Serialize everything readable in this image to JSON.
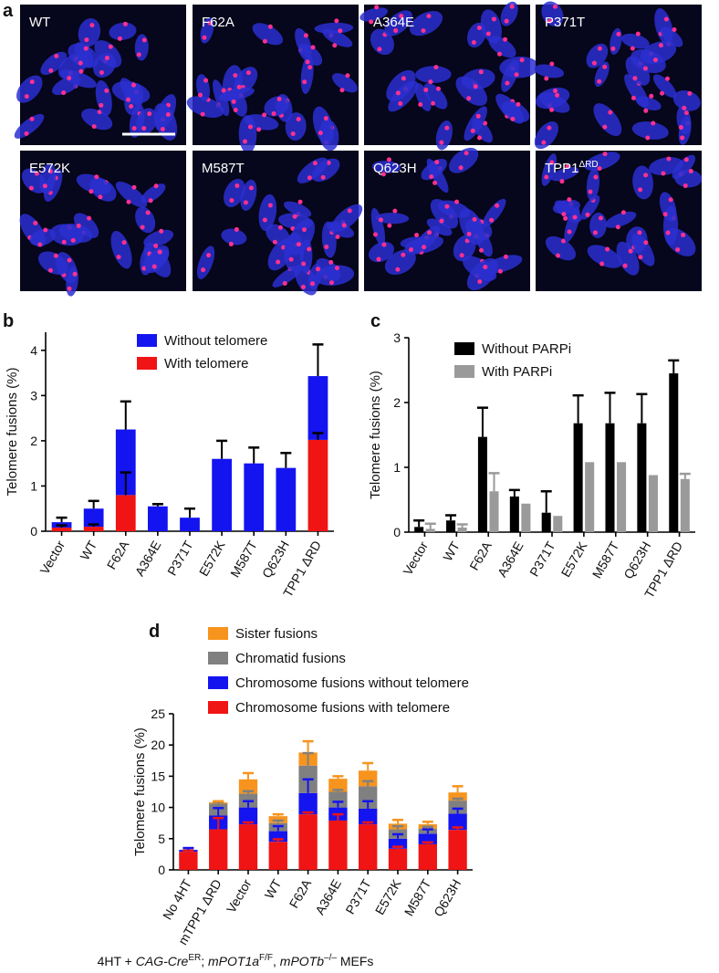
{
  "figure": {
    "panels": [
      "a",
      "b",
      "c",
      "d"
    ]
  },
  "images": [
    {
      "label": "WT"
    },
    {
      "label": "F62A"
    },
    {
      "label": "A364E"
    },
    {
      "label": "P371T"
    },
    {
      "label": "E572K"
    },
    {
      "label": "M587T"
    },
    {
      "label": "Q623H"
    },
    {
      "label": "TPP1",
      "superscript": "ΔRD"
    }
  ],
  "chart_data": [
    {
      "type": "stacked_bar",
      "y_label": "Telomere fusions (%)",
      "categories": [
        "Vector",
        "WT",
        "F62A",
        "A364E",
        "P371T",
        "E572K",
        "M587T",
        "Q623H",
        "TPP1 ΔRD"
      ],
      "series": [
        {
          "name": "Without telomere",
          "color": "#1414f0",
          "values": [
            0.12,
            0.4,
            1.45,
            0.55,
            0.3,
            1.6,
            1.5,
            1.4,
            1.41
          ],
          "errors": [
            0.1,
            0.17,
            0.62,
            0.05,
            0.2,
            0.4,
            0.35,
            0.33,
            0.7
          ]
        },
        {
          "name": "With telomere",
          "color": "#f01414",
          "values": [
            0.08,
            0.1,
            0.8,
            0,
            0,
            0,
            0,
            0,
            2.02
          ],
          "errors": [
            0.05,
            0.05,
            0.5,
            null,
            null,
            null,
            null,
            null,
            0.15
          ]
        }
      ],
      "error_color": "#000000",
      "ylim": [
        0,
        4.4
      ],
      "yticks": [
        0,
        1,
        2,
        3,
        4
      ]
    },
    {
      "type": "grouped_bar",
      "y_label": "Telomere fusions (%)",
      "categories": [
        "Vector",
        "WT",
        "F62A",
        "A364E",
        "P371T",
        "E572K",
        "M587T",
        "Q623H",
        "TPP1 ΔRD"
      ],
      "series": [
        {
          "name": "Without PARPi",
          "color": "#000000",
          "values": [
            0.08,
            0.18,
            1.47,
            0.55,
            0.3,
            1.68,
            1.68,
            1.68,
            2.45
          ],
          "errors": [
            0.1,
            0.08,
            0.45,
            0.1,
            0.33,
            0.43,
            0.47,
            0.45,
            0.2
          ]
        },
        {
          "name": "With PARPi",
          "color": "#9a9a9a",
          "values": [
            0.05,
            0.07,
            0.63,
            0.44,
            0.25,
            1.08,
            1.08,
            0.88,
            0.82
          ],
          "errors": [
            0.08,
            0.05,
            0.28,
            null,
            null,
            null,
            null,
            null,
            0.08
          ]
        }
      ],
      "ylim": [
        0,
        3
      ],
      "yticks": [
        0,
        1,
        2,
        3
      ]
    },
    {
      "type": "stacked_bar",
      "y_label": "Telomere fusions (%)",
      "categories": [
        "No 4HT",
        "mTPP1 ΔRD",
        "Vector",
        "WT",
        "F62A",
        "A364E",
        "P371T",
        "E572K",
        "M587T",
        "Q623H"
      ],
      "series": [
        {
          "name": "Sister fusions",
          "color": "#f7941d",
          "values": [
            0,
            0.2,
            2.3,
            1.1,
            2.1,
            2.1,
            2.5,
            0.9,
            0.7,
            1.3
          ],
          "errors": [
            null,
            0.2,
            1.0,
            0.3,
            1.8,
            0.4,
            1.2,
            0.6,
            0.4,
            1.0
          ]
        },
        {
          "name": "Chromatid fusions",
          "color": "#808080",
          "values": [
            0,
            1.9,
            2.2,
            1.3,
            4.4,
            2.5,
            3.6,
            1.5,
            0.8,
            2.1
          ],
          "errors": [
            null,
            0.3,
            0.4,
            0.4,
            2.0,
            0.3,
            0.8,
            0.5,
            0.3,
            0.3
          ]
        },
        {
          "name": "Chromosome fusions without telomere",
          "color": "#1414f0",
          "values": [
            0.3,
            2.2,
            2.7,
            1.7,
            3.4,
            2.1,
            2.5,
            1.6,
            1.7,
            2.6
          ],
          "errors": [
            0.3,
            1.2,
            1.0,
            0.8,
            2.2,
            0.9,
            1.2,
            0.7,
            0.7,
            0.8
          ]
        },
        {
          "name": "Chromosome fusions with telomere",
          "color": "#f01414",
          "values": [
            2.9,
            6.5,
            7.3,
            4.5,
            8.9,
            7.9,
            7.3,
            3.4,
            4.1,
            6.4
          ],
          "errors": [
            0.2,
            1.8,
            0.3,
            0.4,
            0.3,
            1.0,
            0.3,
            0.3,
            0.3,
            0.4
          ]
        }
      ],
      "ylim": [
        0,
        25
      ],
      "yticks": [
        0,
        5,
        10,
        15,
        20,
        25
      ],
      "footnote": [
        {
          "text": "4HT + "
        },
        {
          "text": "CAG-Cre",
          "style": "italic"
        },
        {
          "text": "ER",
          "style": "sup"
        },
        {
          "text": "; "
        },
        {
          "text": "mPOT1a",
          "style": "italic"
        },
        {
          "text": "F/F",
          "style": "sup"
        },
        {
          "text": ", "
        },
        {
          "text": "mPOTb",
          "style": "italic"
        },
        {
          "text": "–/–",
          "style": "sup"
        },
        {
          "text": " MEFs"
        }
      ]
    }
  ]
}
